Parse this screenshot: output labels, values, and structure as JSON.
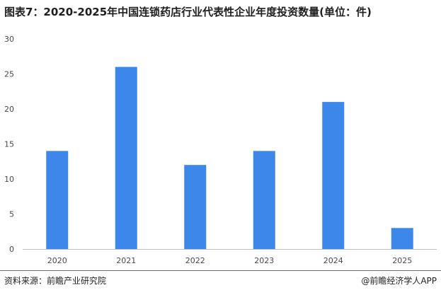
{
  "title": "图表7：2020-2025年中国连锁药店行业代表性企业年度投资数量(单位：件)",
  "source": "资料来源：前瞻产业研究院",
  "brand": "@前瞻经济学人APP",
  "chart_data": {
    "type": "bar",
    "title": "图表7：2020-2025年中国连锁药店行业代表性企业年度投资数量(单位：件)",
    "categories": [
      "2020",
      "2021",
      "2022",
      "2023",
      "2024",
      "2025"
    ],
    "values": [
      14,
      26,
      12,
      14,
      21,
      3
    ],
    "ylim": [
      0,
      30
    ],
    "yticks": [
      0,
      5,
      10,
      15,
      20,
      25,
      30
    ],
    "grid": false,
    "bar_color": "#3d87ea",
    "axis_color": "#bfbfbf"
  }
}
